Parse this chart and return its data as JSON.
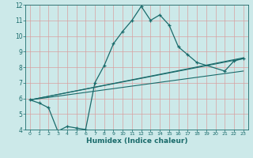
{
  "xlabel": "Humidex (Indice chaleur)",
  "ylabel": "",
  "bg_color": "#cce9e9",
  "line_color": "#1a6b6b",
  "grid_color": "#b0d8d8",
  "xlim": [
    -0.5,
    23.5
  ],
  "ylim": [
    4,
    12
  ],
  "xticks": [
    0,
    1,
    2,
    3,
    4,
    5,
    6,
    7,
    8,
    9,
    10,
    11,
    12,
    13,
    14,
    15,
    16,
    17,
    18,
    19,
    20,
    21,
    22,
    23
  ],
  "yticks": [
    4,
    5,
    6,
    7,
    8,
    9,
    10,
    11,
    12
  ],
  "series_main": {
    "x": [
      0,
      1,
      2,
      3,
      4,
      5,
      6,
      7,
      8,
      9,
      10,
      11,
      12,
      13,
      14,
      15,
      16,
      17,
      18,
      21,
      22,
      23
    ],
    "y": [
      5.9,
      5.7,
      5.4,
      3.9,
      4.2,
      4.1,
      4.0,
      7.0,
      8.1,
      9.5,
      10.3,
      11.0,
      11.9,
      11.0,
      11.35,
      10.7,
      9.3,
      8.8,
      8.3,
      7.75,
      8.4,
      8.55
    ]
  },
  "lines": [
    {
      "x": [
        0,
        23
      ],
      "y": [
        5.9,
        8.55
      ]
    },
    {
      "x": [
        0,
        23
      ],
      "y": [
        5.9,
        7.75
      ]
    },
    {
      "x": [
        0,
        23
      ],
      "y": [
        5.9,
        8.6
      ]
    }
  ]
}
